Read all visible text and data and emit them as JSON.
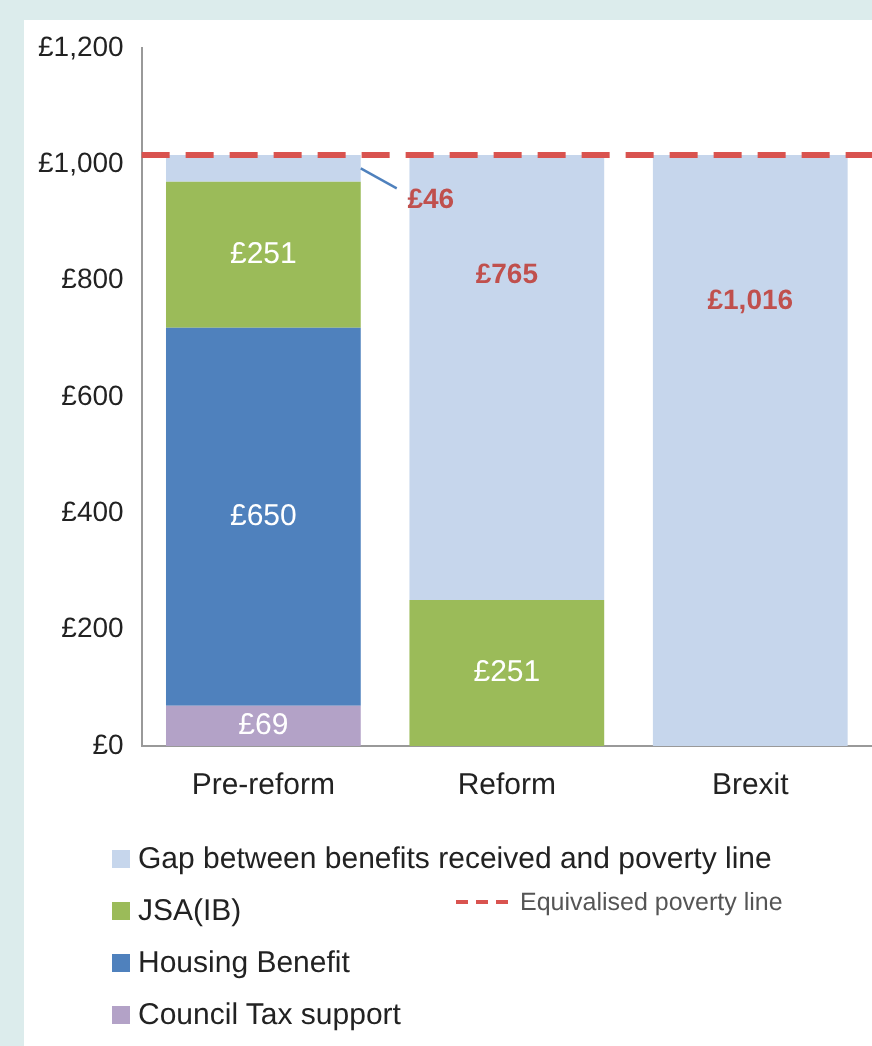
{
  "chart_data": {
    "type": "bar",
    "stacked": true,
    "categories": [
      "Pre-reform",
      "Reform",
      "Brexit"
    ],
    "series": [
      {
        "name": "Council Tax support",
        "color": "#b3a2c7",
        "values": [
          69,
          null,
          null
        ],
        "value_labels": [
          "£69",
          null,
          null
        ]
      },
      {
        "name": "Housing Benefit",
        "color": "#4f81bd",
        "values": [
          650,
          null,
          null
        ],
        "value_labels": [
          "£650",
          null,
          null
        ]
      },
      {
        "name": "JSA(IB)",
        "color": "#9bbb59",
        "values": [
          251,
          251,
          null
        ],
        "value_labels": [
          "£251",
          "£251",
          null
        ]
      },
      {
        "name": "Gap between benefits received and poverty line",
        "color": "#c6d6ec",
        "values": [
          46,
          765,
          1016
        ],
        "value_labels": [
          "£46",
          "£765",
          "£1,016"
        ]
      }
    ],
    "ylim": [
      0,
      1200
    ],
    "yticks": [
      {
        "value": 0,
        "label": "£0"
      },
      {
        "value": 200,
        "label": "£200"
      },
      {
        "value": 400,
        "label": "£400"
      },
      {
        "value": 600,
        "label": "£600"
      },
      {
        "value": 800,
        "label": "£800"
      },
      {
        "value": 1000,
        "label": "£1,000"
      },
      {
        "value": 1200,
        "label": "£1,200"
      }
    ],
    "ref_lines": [
      {
        "axis": "y",
        "value": 1016,
        "label": "Equivalised poverty line",
        "color": "#d9534f",
        "line_style": "dashed"
      }
    ],
    "grid": false,
    "legend": "bottom"
  }
}
